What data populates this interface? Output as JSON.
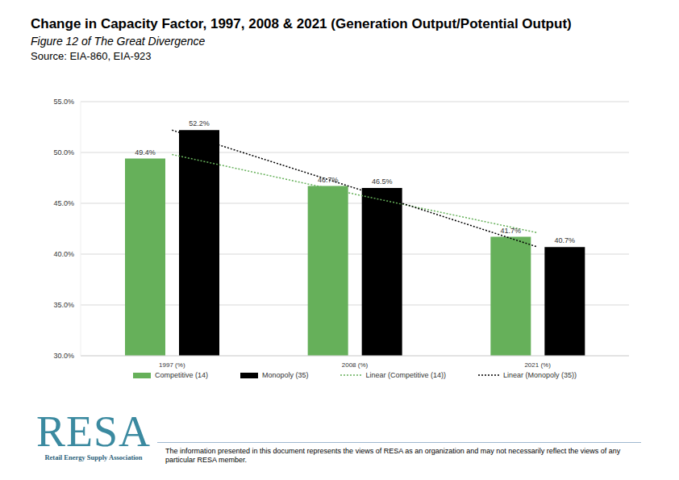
{
  "chart_data": {
    "type": "bar",
    "title": "Change in Capacity Factor, 1997, 2008 & 2021 (Generation Output/Potential Output)",
    "subtitle": "Figure 12 of The Great Divergence",
    "source": "Source: EIA-860, EIA-923",
    "categories": [
      "1997 (%)",
      "2008 (%)",
      "2021 (%)"
    ],
    "series": [
      {
        "name": "Competitive (14)",
        "type": "bar",
        "color": "#66b05a",
        "data_labels": true,
        "values": [
          49.4,
          46.7,
          41.7
        ],
        "value_labels": [
          "49.4%",
          "46.7%",
          "41.7%"
        ]
      },
      {
        "name": "Monopoly (35)",
        "type": "bar",
        "color": "#000000",
        "data_labels": true,
        "values": [
          52.2,
          46.5,
          40.7
        ],
        "value_labels": [
          "52.2%",
          "46.5%",
          "40.7%"
        ]
      },
      {
        "name": "Linear (Competitive (14))",
        "type": "line",
        "color": "#66b05a",
        "line_style": "dotted",
        "marker": "none",
        "values": [
          49.8,
          45.9,
          42.1
        ]
      },
      {
        "name": "Linear (Monopoly (35))",
        "type": "line",
        "color": "#000000",
        "line_style": "dotted",
        "marker": "none",
        "values": [
          52.2,
          46.5,
          40.7
        ]
      }
    ],
    "ylim": [
      30,
      55
    ],
    "yticks": [
      {
        "value": 30,
        "label": "30.0%"
      },
      {
        "value": 35,
        "label": "35.0%"
      },
      {
        "value": 40,
        "label": "40.0%"
      },
      {
        "value": 45,
        "label": "45.0%"
      },
      {
        "value": 50,
        "label": "50.0%"
      },
      {
        "value": 55,
        "label": "55.0%"
      }
    ],
    "grid": true,
    "legend": "bottom",
    "footer": {
      "logo": "RESA",
      "logo_subtitle": "Retail Energy Supply Association",
      "disclaimer": "The information presented in this document represents the views of RESA as an organization and may not necessarily reflect the views of any particular RESA member."
    }
  }
}
